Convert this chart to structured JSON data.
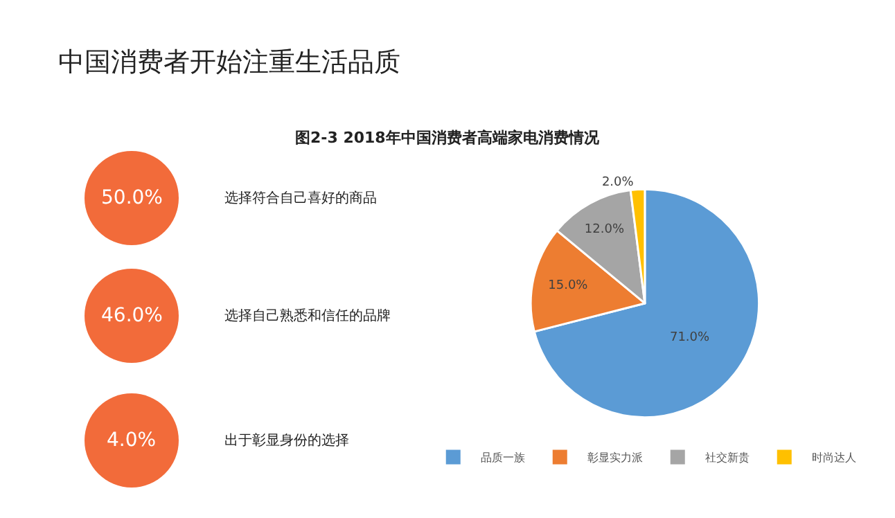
{
  "chart_data": [
    {
      "type": "other",
      "title": "中国消费者开始注重生活品质",
      "categories": [
        "选择符合自己喜好的商品",
        "选择自己熟悉和信任的品牌",
        "出于彰显身份的选择"
      ],
      "value_labels": [
        "50.0%",
        "46.0%",
        "4.0%"
      ],
      "color": "#f26b3a"
    },
    {
      "type": "pie",
      "title": "图2-3 2018年中国消费者高端家电消费情况",
      "categories": [
        "品质一族",
        "彰显实力派",
        "社交新贵",
        "时尚达人"
      ],
      "values": [
        71.0,
        15.0,
        12.0,
        2.0
      ],
      "value_labels": [
        "71.0%",
        "15.0%",
        "12.0%",
        "2.0%"
      ],
      "colors": [
        "#5b9bd5",
        "#ed7d31",
        "#a5a5a5",
        "#ffc000"
      ],
      "legend": "bottom"
    }
  ]
}
